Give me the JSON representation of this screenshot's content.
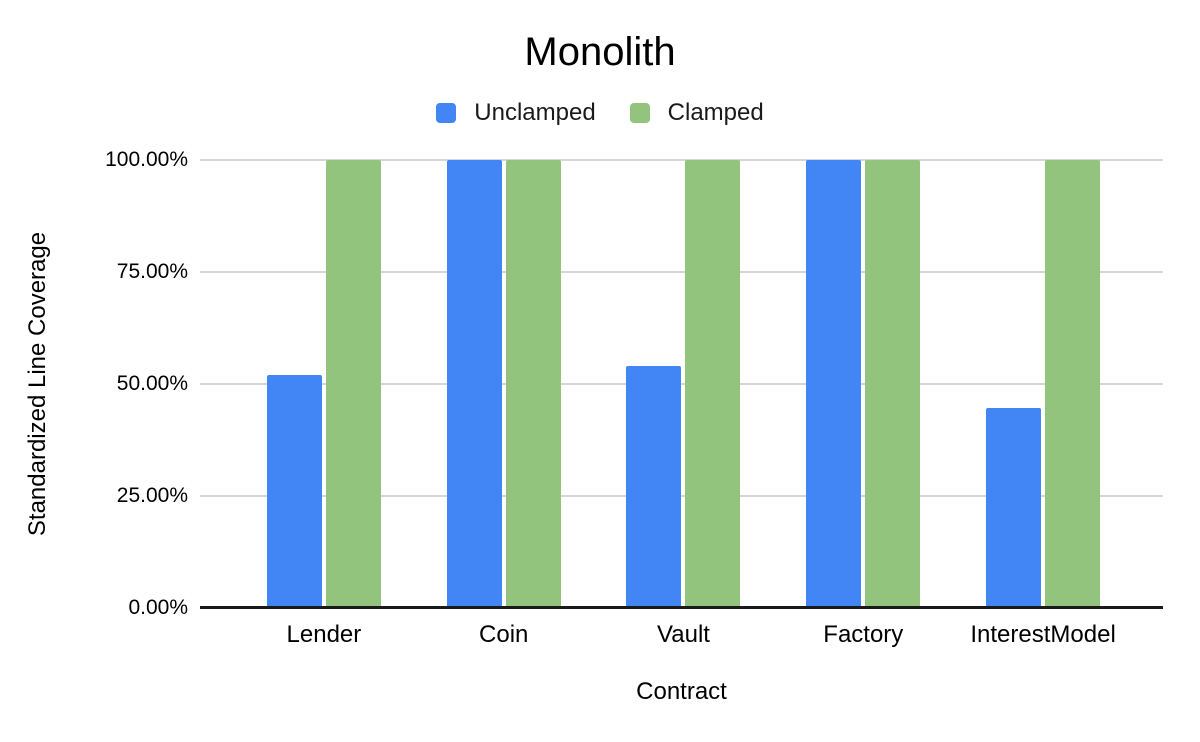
{
  "chart_data": {
    "type": "bar",
    "title": "Monolith",
    "xlabel": "Contract",
    "ylabel": "Standardized Line Coverage",
    "categories": [
      "Lender",
      "Coin",
      "Vault",
      "Factory",
      "InterestModel"
    ],
    "series": [
      {
        "name": "Unclamped",
        "color": "#4285F4",
        "values": [
          52,
          100,
          54,
          100,
          44.6
        ]
      },
      {
        "name": "Clamped",
        "color": "#93C47D",
        "values": [
          100,
          100,
          100,
          100,
          100
        ]
      }
    ],
    "ylim": [
      0,
      100
    ],
    "yticks": [
      {
        "value": 0,
        "label": "0.00%"
      },
      {
        "value": 25,
        "label": "25.00%"
      },
      {
        "value": 50,
        "label": "50.00%"
      },
      {
        "value": 75,
        "label": "75.00%"
      },
      {
        "value": 100,
        "label": "100.00%"
      }
    ],
    "grid": true,
    "legend_position": "top-center"
  },
  "colors": {
    "grid_line": "#D6D6D6",
    "axis_line": "#1A1A1A",
    "text": "#000000",
    "background": "#FFFFFF"
  }
}
